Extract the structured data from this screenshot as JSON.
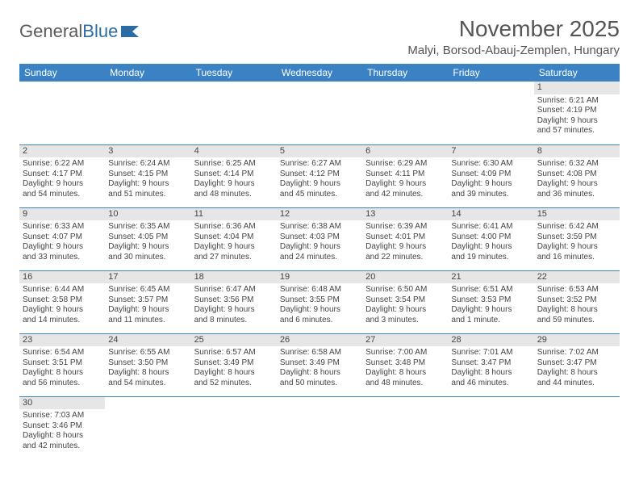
{
  "brand": {
    "part1": "General",
    "part2": "Blue"
  },
  "title": "November 2025",
  "location": "Malyi, Borsod-Abauj-Zemplen, Hungary",
  "colors": {
    "header_bg": "#3b82c4",
    "header_text": "#ffffff",
    "daynum_bg": "#e6e6e6",
    "row_divider": "#3b82c4",
    "text": "#444444",
    "title_text": "#555555",
    "logo_gray": "#5a5a5a",
    "logo_blue": "#2d6ca2"
  },
  "typography": {
    "title_fontsize": 28,
    "location_fontsize": 15,
    "dayhead_fontsize": 12,
    "cell_fontsize": 10,
    "logo_fontsize": 22
  },
  "dayNames": [
    "Sunday",
    "Monday",
    "Tuesday",
    "Wednesday",
    "Thursday",
    "Friday",
    "Saturday"
  ],
  "weeks": [
    [
      null,
      null,
      null,
      null,
      null,
      null,
      {
        "n": "1",
        "sr": "Sunrise: 6:21 AM",
        "ss": "Sunset: 4:19 PM",
        "d1": "Daylight: 9 hours",
        "d2": "and 57 minutes."
      }
    ],
    [
      {
        "n": "2",
        "sr": "Sunrise: 6:22 AM",
        "ss": "Sunset: 4:17 PM",
        "d1": "Daylight: 9 hours",
        "d2": "and 54 minutes."
      },
      {
        "n": "3",
        "sr": "Sunrise: 6:24 AM",
        "ss": "Sunset: 4:15 PM",
        "d1": "Daylight: 9 hours",
        "d2": "and 51 minutes."
      },
      {
        "n": "4",
        "sr": "Sunrise: 6:25 AM",
        "ss": "Sunset: 4:14 PM",
        "d1": "Daylight: 9 hours",
        "d2": "and 48 minutes."
      },
      {
        "n": "5",
        "sr": "Sunrise: 6:27 AM",
        "ss": "Sunset: 4:12 PM",
        "d1": "Daylight: 9 hours",
        "d2": "and 45 minutes."
      },
      {
        "n": "6",
        "sr": "Sunrise: 6:29 AM",
        "ss": "Sunset: 4:11 PM",
        "d1": "Daylight: 9 hours",
        "d2": "and 42 minutes."
      },
      {
        "n": "7",
        "sr": "Sunrise: 6:30 AM",
        "ss": "Sunset: 4:09 PM",
        "d1": "Daylight: 9 hours",
        "d2": "and 39 minutes."
      },
      {
        "n": "8",
        "sr": "Sunrise: 6:32 AM",
        "ss": "Sunset: 4:08 PM",
        "d1": "Daylight: 9 hours",
        "d2": "and 36 minutes."
      }
    ],
    [
      {
        "n": "9",
        "sr": "Sunrise: 6:33 AM",
        "ss": "Sunset: 4:07 PM",
        "d1": "Daylight: 9 hours",
        "d2": "and 33 minutes."
      },
      {
        "n": "10",
        "sr": "Sunrise: 6:35 AM",
        "ss": "Sunset: 4:05 PM",
        "d1": "Daylight: 9 hours",
        "d2": "and 30 minutes."
      },
      {
        "n": "11",
        "sr": "Sunrise: 6:36 AM",
        "ss": "Sunset: 4:04 PM",
        "d1": "Daylight: 9 hours",
        "d2": "and 27 minutes."
      },
      {
        "n": "12",
        "sr": "Sunrise: 6:38 AM",
        "ss": "Sunset: 4:03 PM",
        "d1": "Daylight: 9 hours",
        "d2": "and 24 minutes."
      },
      {
        "n": "13",
        "sr": "Sunrise: 6:39 AM",
        "ss": "Sunset: 4:01 PM",
        "d1": "Daylight: 9 hours",
        "d2": "and 22 minutes."
      },
      {
        "n": "14",
        "sr": "Sunrise: 6:41 AM",
        "ss": "Sunset: 4:00 PM",
        "d1": "Daylight: 9 hours",
        "d2": "and 19 minutes."
      },
      {
        "n": "15",
        "sr": "Sunrise: 6:42 AM",
        "ss": "Sunset: 3:59 PM",
        "d1": "Daylight: 9 hours",
        "d2": "and 16 minutes."
      }
    ],
    [
      {
        "n": "16",
        "sr": "Sunrise: 6:44 AM",
        "ss": "Sunset: 3:58 PM",
        "d1": "Daylight: 9 hours",
        "d2": "and 14 minutes."
      },
      {
        "n": "17",
        "sr": "Sunrise: 6:45 AM",
        "ss": "Sunset: 3:57 PM",
        "d1": "Daylight: 9 hours",
        "d2": "and 11 minutes."
      },
      {
        "n": "18",
        "sr": "Sunrise: 6:47 AM",
        "ss": "Sunset: 3:56 PM",
        "d1": "Daylight: 9 hours",
        "d2": "and 8 minutes."
      },
      {
        "n": "19",
        "sr": "Sunrise: 6:48 AM",
        "ss": "Sunset: 3:55 PM",
        "d1": "Daylight: 9 hours",
        "d2": "and 6 minutes."
      },
      {
        "n": "20",
        "sr": "Sunrise: 6:50 AM",
        "ss": "Sunset: 3:54 PM",
        "d1": "Daylight: 9 hours",
        "d2": "and 3 minutes."
      },
      {
        "n": "21",
        "sr": "Sunrise: 6:51 AM",
        "ss": "Sunset: 3:53 PM",
        "d1": "Daylight: 9 hours",
        "d2": "and 1 minute."
      },
      {
        "n": "22",
        "sr": "Sunrise: 6:53 AM",
        "ss": "Sunset: 3:52 PM",
        "d1": "Daylight: 8 hours",
        "d2": "and 59 minutes."
      }
    ],
    [
      {
        "n": "23",
        "sr": "Sunrise: 6:54 AM",
        "ss": "Sunset: 3:51 PM",
        "d1": "Daylight: 8 hours",
        "d2": "and 56 minutes."
      },
      {
        "n": "24",
        "sr": "Sunrise: 6:55 AM",
        "ss": "Sunset: 3:50 PM",
        "d1": "Daylight: 8 hours",
        "d2": "and 54 minutes."
      },
      {
        "n": "25",
        "sr": "Sunrise: 6:57 AM",
        "ss": "Sunset: 3:49 PM",
        "d1": "Daylight: 8 hours",
        "d2": "and 52 minutes."
      },
      {
        "n": "26",
        "sr": "Sunrise: 6:58 AM",
        "ss": "Sunset: 3:49 PM",
        "d1": "Daylight: 8 hours",
        "d2": "and 50 minutes."
      },
      {
        "n": "27",
        "sr": "Sunrise: 7:00 AM",
        "ss": "Sunset: 3:48 PM",
        "d1": "Daylight: 8 hours",
        "d2": "and 48 minutes."
      },
      {
        "n": "28",
        "sr": "Sunrise: 7:01 AM",
        "ss": "Sunset: 3:47 PM",
        "d1": "Daylight: 8 hours",
        "d2": "and 46 minutes."
      },
      {
        "n": "29",
        "sr": "Sunrise: 7:02 AM",
        "ss": "Sunset: 3:47 PM",
        "d1": "Daylight: 8 hours",
        "d2": "and 44 minutes."
      }
    ],
    [
      {
        "n": "30",
        "sr": "Sunrise: 7:03 AM",
        "ss": "Sunset: 3:46 PM",
        "d1": "Daylight: 8 hours",
        "d2": "and 42 minutes."
      },
      null,
      null,
      null,
      null,
      null,
      null
    ]
  ]
}
